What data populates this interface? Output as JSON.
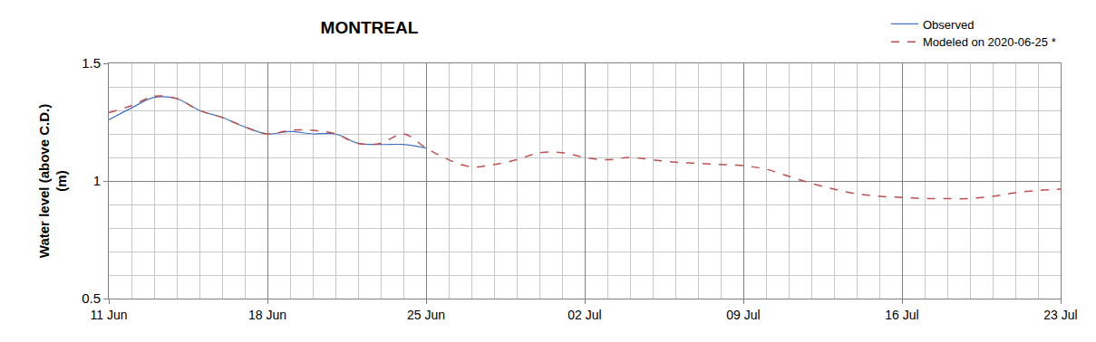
{
  "chart_data": {
    "type": "line",
    "title": "MONTREAL",
    "y_label": [
      "Water level (above C.D.)",
      "(m)"
    ],
    "categories": [
      "11 Jun",
      null,
      null,
      null,
      null,
      null,
      null,
      "18 Jun",
      null,
      null,
      null,
      null,
      null,
      null,
      "25 Jun",
      null,
      null,
      null,
      null,
      null,
      null,
      "02 Jul",
      null,
      null,
      null,
      null,
      null,
      null,
      "09 Jul",
      null,
      null,
      null,
      null,
      null,
      null,
      "16 Jul",
      null,
      null,
      null,
      null,
      null,
      null,
      "23 Jul"
    ],
    "series": [
      {
        "name": "Observed",
        "color": "#4472c4",
        "line_style": "solid",
        "values": [
          1.26,
          1.31,
          1.355,
          1.35,
          1.3,
          1.27,
          1.23,
          1.2,
          1.21,
          1.2,
          1.2,
          1.16,
          1.155,
          1.155,
          1.14,
          null,
          null,
          null,
          null,
          null,
          null,
          null,
          null,
          null,
          null,
          null,
          null,
          null,
          null,
          null,
          null,
          null,
          null,
          null,
          null,
          null,
          null,
          null,
          null,
          null,
          null,
          null,
          null
        ]
      },
      {
        "name": "Modeled on 2020-06-25 *",
        "color": "#c0504d",
        "line_style": "dash",
        "values": [
          1.29,
          1.32,
          1.36,
          1.35,
          1.3,
          1.27,
          1.23,
          1.2,
          1.215,
          1.215,
          1.2,
          1.16,
          1.16,
          1.2,
          1.14,
          1.09,
          1.06,
          1.07,
          1.09,
          1.12,
          1.12,
          1.1,
          1.09,
          1.1,
          1.09,
          1.08,
          1.075,
          1.07,
          1.065,
          1.05,
          1.02,
          0.99,
          0.965,
          0.945,
          0.935,
          0.93,
          0.925,
          0.925,
          0.925,
          0.935,
          0.95,
          0.96,
          0.965
        ]
      }
    ],
    "ylim": [
      0.5,
      1.5
    ],
    "yticks": [
      0.5,
      1,
      1.5
    ],
    "grid": true,
    "legend": "top right"
  }
}
